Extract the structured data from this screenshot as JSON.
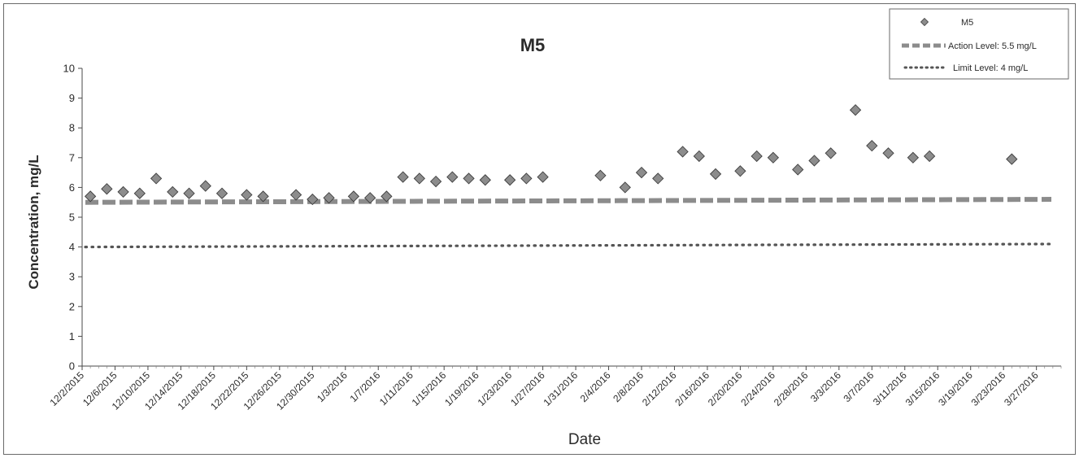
{
  "chart_data": {
    "type": "scatter",
    "title": "M5",
    "xlabel": "Date",
    "ylabel": "Concentration, mg/L",
    "ylim": [
      0,
      10
    ],
    "yticks": [
      0,
      1,
      2,
      3,
      4,
      5,
      6,
      7,
      8,
      9,
      10
    ],
    "xlim": [
      "2015-12-02",
      "2016-03-30"
    ],
    "xtick_labels": [
      "12/2/2015",
      "12/6/2015",
      "12/10/2015",
      "12/14/2015",
      "12/18/2015",
      "12/22/2015",
      "12/26/2015",
      "12/30/2015",
      "1/3/2016",
      "1/7/2016",
      "1/11/2016",
      "1/15/2016",
      "1/19/2016",
      "1/23/2016",
      "1/27/2016",
      "1/31/2016",
      "2/4/2016",
      "2/8/2016",
      "2/12/2016",
      "2/16/2016",
      "2/20/2016",
      "2/24/2016",
      "2/28/2016",
      "3/3/2016",
      "3/7/2016",
      "3/11/2016",
      "3/15/2016",
      "3/19/2016",
      "3/23/2016",
      "3/27/2016"
    ],
    "grid": false,
    "legend_position": "top-right",
    "series": [
      {
        "name": "M5",
        "marker": "diamond",
        "color": "#8c8c8c",
        "points": [
          [
            "2015-12-03",
            5.7
          ],
          [
            "2015-12-05",
            5.95
          ],
          [
            "2015-12-07",
            5.85
          ],
          [
            "2015-12-09",
            5.8
          ],
          [
            "2015-12-11",
            6.3
          ],
          [
            "2015-12-13",
            5.85
          ],
          [
            "2015-12-15",
            5.8
          ],
          [
            "2015-12-17",
            6.05
          ],
          [
            "2015-12-19",
            5.8
          ],
          [
            "2015-12-22",
            5.75
          ],
          [
            "2015-12-24",
            5.7
          ],
          [
            "2015-12-28",
            5.75
          ],
          [
            "2015-12-30",
            5.6
          ],
          [
            "2016-01-01",
            5.65
          ],
          [
            "2016-01-04",
            5.7
          ],
          [
            "2016-01-06",
            5.65
          ],
          [
            "2016-01-08",
            5.7
          ],
          [
            "2016-01-10",
            6.35
          ],
          [
            "2016-01-12",
            6.3
          ],
          [
            "2016-01-14",
            6.2
          ],
          [
            "2016-01-16",
            6.35
          ],
          [
            "2016-01-18",
            6.3
          ],
          [
            "2016-01-20",
            6.25
          ],
          [
            "2016-01-23",
            6.25
          ],
          [
            "2016-01-25",
            6.3
          ],
          [
            "2016-01-27",
            6.35
          ],
          [
            "2016-02-03",
            6.4
          ],
          [
            "2016-02-06",
            6.0
          ],
          [
            "2016-02-08",
            6.5
          ],
          [
            "2016-02-10",
            6.3
          ],
          [
            "2016-02-13",
            7.2
          ],
          [
            "2016-02-15",
            7.05
          ],
          [
            "2016-02-17",
            6.45
          ],
          [
            "2016-02-20",
            6.55
          ],
          [
            "2016-02-22",
            7.05
          ],
          [
            "2016-02-24",
            7.0
          ],
          [
            "2016-02-27",
            6.6
          ],
          [
            "2016-02-29",
            6.9
          ],
          [
            "2016-03-02",
            7.15
          ],
          [
            "2016-03-05",
            8.6
          ],
          [
            "2016-03-07",
            7.4
          ],
          [
            "2016-03-09",
            7.15
          ],
          [
            "2016-03-12",
            7.0
          ],
          [
            "2016-03-14",
            7.05
          ],
          [
            "2016-03-24",
            6.95
          ]
        ]
      },
      {
        "name": "Action Level: 5.5 mg/L",
        "style": "dashed",
        "color": "#8c8c8c",
        "y_start": 5.5,
        "y_end": 5.6
      },
      {
        "name": "Limit Level: 4 mg/L",
        "style": "dotted",
        "color": "#555555",
        "y_start": 4.0,
        "y_end": 4.1
      }
    ]
  }
}
